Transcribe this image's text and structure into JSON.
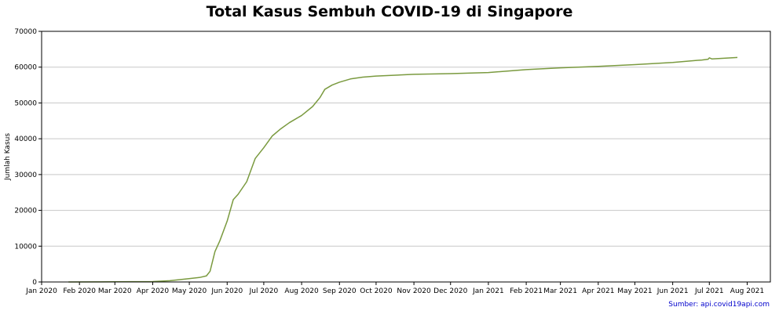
{
  "chart_data": {
    "type": "line",
    "title": "Total Kasus Sembuh COVID-19 di Singapore",
    "xlabel": "",
    "ylabel": "Jumlah Kasus",
    "source": "Sumber: api.covid19api.com",
    "xlim": [
      "2020-01-01",
      "2021-08-20"
    ],
    "ylim": [
      0,
      70000
    ],
    "grid": "horizontal",
    "line_color": "#7a9a3f",
    "y_ticks": [
      0,
      10000,
      20000,
      30000,
      40000,
      50000,
      60000,
      70000
    ],
    "x_ticks": [
      {
        "date": "2020-01-01",
        "label": "Jan 2020"
      },
      {
        "date": "2020-02-01",
        "label": "Feb 2020"
      },
      {
        "date": "2020-03-01",
        "label": "Mar 2020"
      },
      {
        "date": "2020-04-01",
        "label": "Apr 2020"
      },
      {
        "date": "2020-05-01",
        "label": "May 2020"
      },
      {
        "date": "2020-06-01",
        "label": "Jun 2020"
      },
      {
        "date": "2020-07-01",
        "label": "Jul 2020"
      },
      {
        "date": "2020-08-01",
        "label": "Aug 2020"
      },
      {
        "date": "2020-09-01",
        "label": "Sep 2020"
      },
      {
        "date": "2020-10-01",
        "label": "Oct 2020"
      },
      {
        "date": "2020-11-01",
        "label": "Nov 2020"
      },
      {
        "date": "2020-12-01",
        "label": "Dec 2020"
      },
      {
        "date": "2021-01-01",
        "label": "Jan 2021"
      },
      {
        "date": "2021-02-01",
        "label": "Feb 2021"
      },
      {
        "date": "2021-03-01",
        "label": "Mar 2021"
      },
      {
        "date": "2021-04-01",
        "label": "Apr 2021"
      },
      {
        "date": "2021-05-01",
        "label": "May 2021"
      },
      {
        "date": "2021-06-01",
        "label": "Jun 2021"
      },
      {
        "date": "2021-07-01",
        "label": "Jul 2021"
      },
      {
        "date": "2021-08-01",
        "label": "Aug 2021"
      }
    ],
    "series": [
      {
        "x": [
          "2020-01-23",
          "2020-02-15",
          "2020-03-15",
          "2020-04-01",
          "2020-04-15",
          "2020-04-30",
          "2020-05-10",
          "2020-05-15",
          "2020-05-18",
          "2020-05-22",
          "2020-05-26",
          "2020-06-01",
          "2020-06-06",
          "2020-06-10",
          "2020-06-17",
          "2020-06-24",
          "2020-07-01",
          "2020-07-08",
          "2020-07-15",
          "2020-07-22",
          "2020-08-01",
          "2020-08-10",
          "2020-08-16",
          "2020-08-20",
          "2020-08-26",
          "2020-09-01",
          "2020-09-10",
          "2020-09-20",
          "2020-10-01",
          "2020-11-01",
          "2020-12-01",
          "2021-01-01",
          "2021-02-01",
          "2021-03-01",
          "2021-04-01",
          "2021-05-01",
          "2021-06-01",
          "2021-06-25",
          "2021-06-30",
          "2021-07-01",
          "2021-07-03",
          "2021-07-24"
        ],
        "values": [
          0,
          20,
          70,
          120,
          350,
          900,
          1300,
          1700,
          3000,
          8500,
          11500,
          17000,
          23000,
          24500,
          28000,
          34500,
          37500,
          40800,
          42800,
          44500,
          46500,
          49000,
          51500,
          53800,
          55000,
          55800,
          56700,
          57200,
          57500,
          58000,
          58200,
          58500,
          59300,
          59800,
          60200,
          60700,
          61300,
          62000,
          62200,
          62600,
          62300,
          62700
        ]
      }
    ]
  }
}
